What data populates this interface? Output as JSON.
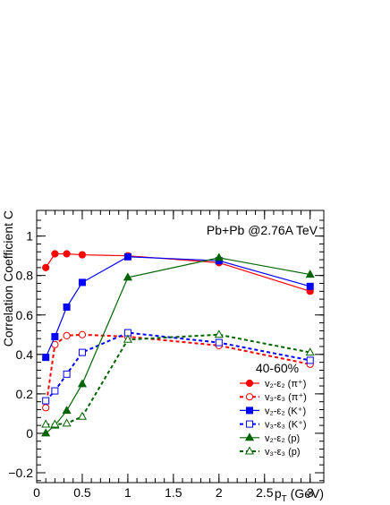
{
  "chart_data": {
    "type": "line",
    "annotation": "Pb+Pb @2.76A TeV",
    "xlabel": "p",
    "xlabel_sub": "T",
    "xlabel_unit": " (GeV)",
    "ylabel": "Correlation Coefficient C",
    "xlim": [
      0,
      3.15
    ],
    "ylim": [
      -0.25,
      1.13
    ],
    "x_ticks": [
      "0",
      "0.5",
      "1",
      "1.5",
      "2",
      "2.5",
      "3"
    ],
    "x_tick_values": [
      0,
      0.5,
      1,
      1.5,
      2,
      2.5,
      3
    ],
    "y_ticks": [
      "−0.2",
      "0",
      "0.2",
      "0.4",
      "0.6",
      "0.8",
      "1"
    ],
    "y_tick_values": [
      -0.2,
      0,
      0.2,
      0.4,
      0.6,
      0.8,
      1.0
    ],
    "legend_title": "40-60%",
    "legend_position": "bottom-right",
    "series": [
      {
        "name": "v₂-ε₂ (π⁺)",
        "color": "#ff0000",
        "dash": "solid",
        "marker": "circle",
        "filled": true,
        "x": [
          0.1,
          0.2,
          0.33,
          0.5,
          1.0,
          2.0,
          3.0
        ],
        "y": [
          0.84,
          0.91,
          0.91,
          0.905,
          0.9,
          0.865,
          0.72
        ]
      },
      {
        "name": "v₃-ε₃ (π⁺)",
        "color": "#ff0000",
        "dash": "dashed",
        "marker": "circle",
        "filled": false,
        "x": [
          0.1,
          0.2,
          0.33,
          0.5,
          1.0,
          2.0,
          3.0
        ],
        "y": [
          0.13,
          0.45,
          0.495,
          0.5,
          0.49,
          0.445,
          0.35
        ]
      },
      {
        "name": "v₂-ε₂ (K⁺)",
        "color": "#0000ff",
        "dash": "solid",
        "marker": "square",
        "filled": true,
        "x": [
          0.1,
          0.2,
          0.33,
          0.5,
          1.0,
          2.0,
          3.0
        ],
        "y": [
          0.385,
          0.49,
          0.64,
          0.765,
          0.895,
          0.875,
          0.745
        ]
      },
      {
        "name": "v₃-ε₃ (K⁺)",
        "color": "#0000ff",
        "dash": "dashed",
        "marker": "square",
        "filled": false,
        "x": [
          0.1,
          0.2,
          0.33,
          0.5,
          1.0,
          2.0,
          3.0
        ],
        "y": [
          0.165,
          0.215,
          0.3,
          0.41,
          0.51,
          0.46,
          0.37
        ]
      },
      {
        "name": "v₂-ε₂ (p)",
        "color": "#006400",
        "dash": "solid",
        "marker": "triangle",
        "filled": true,
        "x": [
          0.1,
          0.2,
          0.33,
          0.5,
          1.0,
          2.0,
          3.0
        ],
        "y": [
          0.0,
          0.04,
          0.115,
          0.25,
          0.79,
          0.89,
          0.805
        ]
      },
      {
        "name": "v₃-ε₃ (p)",
        "color": "#006400",
        "dash": "dashed",
        "marker": "triangle",
        "filled": false,
        "x": [
          0.1,
          0.2,
          0.33,
          0.5,
          1.0,
          2.0,
          3.0
        ],
        "y": [
          0.045,
          0.045,
          0.05,
          0.085,
          0.475,
          0.5,
          0.41
        ]
      }
    ]
  }
}
